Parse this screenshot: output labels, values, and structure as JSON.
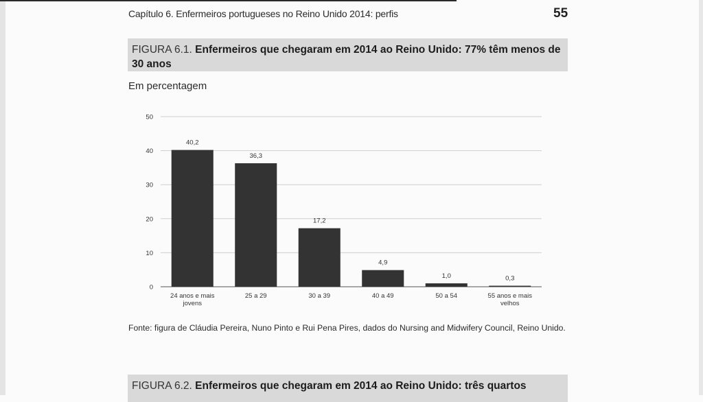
{
  "header": {
    "running_title": "Capítulo 6.  Enfermeiros portugueses no Reino Unido 2014: perfis",
    "page_number": "55"
  },
  "figure1": {
    "label": "FIGURA 6.1. ",
    "title": "Enfermeiros que chegaram em 2014 ao Reino Unido: 77% têm menos de 30 anos",
    "units": "Em percentagem",
    "source": "Fonte: figura de Cláudia Pereira, Nuno Pinto e Rui Pena Pires, dados do Nursing and Midwifery Council, Reino Unido."
  },
  "figure2": {
    "label": "FIGURA 6.2. ",
    "title": "Enfermeiros que chegaram em 2014 ao Reino Unido: três quartos"
  },
  "chart_data": {
    "type": "bar",
    "categories": [
      [
        "24 anos e mais",
        "jovens"
      ],
      [
        "25 a 29"
      ],
      [
        "30 a 39"
      ],
      [
        "40 a 49"
      ],
      [
        "50 a  54"
      ],
      [
        "55 anos e mais",
        "velhos"
      ]
    ],
    "values": [
      40.2,
      36.3,
      17.2,
      4.9,
      1.0,
      0.3
    ],
    "value_labels": [
      "40,2",
      "36,3",
      "17,2",
      "4,9",
      "1,0",
      "0,3"
    ],
    "yticks": [
      0,
      10,
      20,
      30,
      40,
      50
    ],
    "ylim": [
      0,
      50
    ],
    "grid": true,
    "bar_color": "#333333",
    "grid_color": "#cfcfcf"
  }
}
